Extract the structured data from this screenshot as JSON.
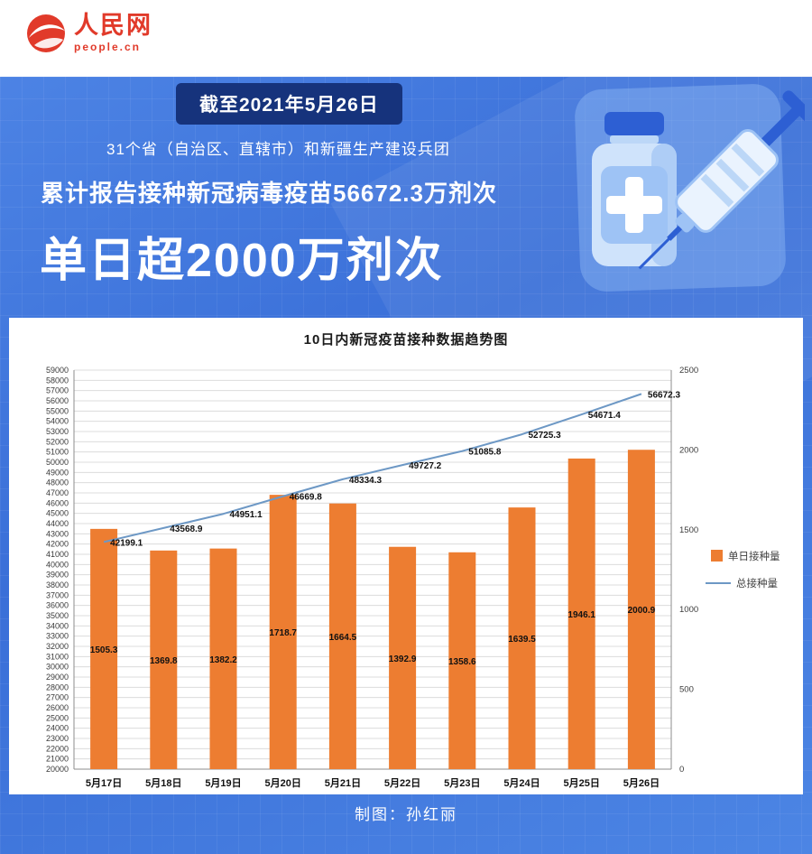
{
  "logo": {
    "cn": "人民网",
    "en": "people.cn"
  },
  "header": {
    "date_badge": "截至2021年5月26日",
    "subtitle": "31个省（自治区、直辖市）和新疆生产建设兵团",
    "stat_line": "累计报告接种新冠病毒疫苗56672.3万剂次",
    "headline": "单日超2000万剂次"
  },
  "colors": {
    "background_blue": "#3a6fd8",
    "badge_navy": "#16337c",
    "bar_orange": "#ED7D31",
    "line_blue": "#6D98C5",
    "logo_red": "#e13a2a"
  },
  "chart_data": {
    "type": "combo",
    "title": "10日内新冠疫苗接种数据趋势图",
    "categories": [
      "5月17日",
      "5月18日",
      "5月19日",
      "5月20日",
      "5月21日",
      "5月22日",
      "5月23日",
      "5月24日",
      "5月25日",
      "5月26日"
    ],
    "series": [
      {
        "name": "单日接种量",
        "type": "bar",
        "axis": "right",
        "color": "#ED7D31",
        "values": [
          1505.3,
          1369.8,
          1382.2,
          1718.7,
          1664.5,
          1392.9,
          1358.6,
          1639.5,
          1946.1,
          2000.9
        ]
      },
      {
        "name": "总接种量",
        "type": "line",
        "axis": "left",
        "color": "#6D98C5",
        "values": [
          42199.1,
          43568.9,
          44951.1,
          46669.8,
          48334.3,
          49727.2,
          51085.8,
          52725.3,
          54671.4,
          56672.3
        ]
      }
    ],
    "left_axis": {
      "min": 20000,
      "max": 59000,
      "step": 1000
    },
    "right_axis": {
      "min": 0,
      "max": 2500,
      "step": 500
    },
    "legend_position": "right",
    "grid": true
  },
  "footer": {
    "credit": "制图：孙红丽"
  }
}
